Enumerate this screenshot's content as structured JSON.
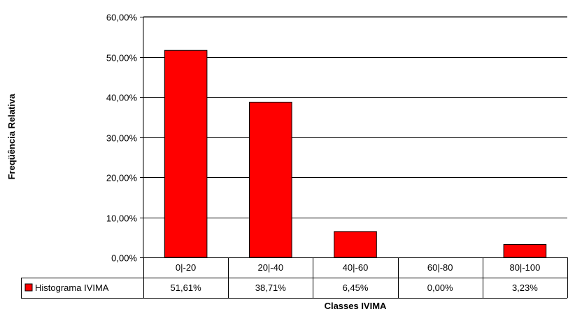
{
  "chart_data": {
    "type": "bar",
    "title": "",
    "xlabel": "Classes IVIMA",
    "ylabel": "Freqüência Relativa",
    "categories": [
      "0|-20",
      "20|-40",
      "40|-60",
      "60|-80",
      "80|-100"
    ],
    "series": [
      {
        "name": "Histograma IVIMA",
        "values": [
          51.61,
          38.71,
          6.45,
          0.0,
          3.23
        ],
        "value_labels": [
          "51,61%",
          "38,71%",
          "6,45%",
          "0,00%",
          "3,23%"
        ],
        "color": "#ff0000"
      }
    ],
    "ylim": [
      0,
      60
    ],
    "y_ticks": [
      0,
      10,
      20,
      30,
      40,
      50,
      60
    ],
    "y_tick_labels": [
      "0,00%",
      "10,00%",
      "20,00%",
      "30,00%",
      "40,00%",
      "50,00%",
      "60,00%"
    ],
    "grid": true,
    "legend": "data-table",
    "data_table": true
  }
}
